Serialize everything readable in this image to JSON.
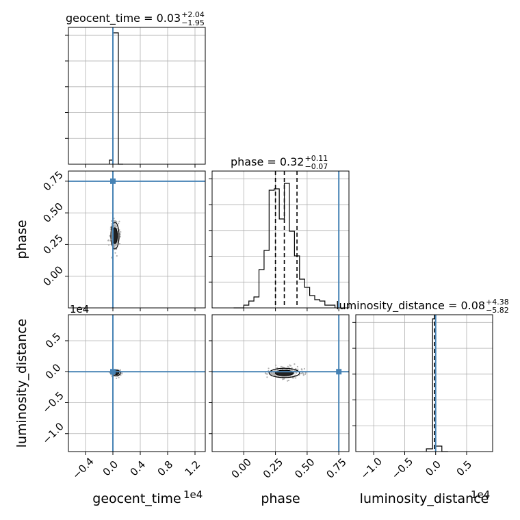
{
  "chart_data": {
    "type": "corner",
    "parameters": [
      "geocent_time",
      "phase",
      "luminosity_distance"
    ],
    "axis_labels": {
      "geocent_time": "geocent_time",
      "phase": "phase",
      "luminosity_distance": "luminosity_distance"
    },
    "titles": [
      {
        "param": "geocent_time",
        "text": "geocent_time = 0.03",
        "plus": "+2.04",
        "minus": "−1.95"
      },
      {
        "param": "phase",
        "text": "phase = 0.32",
        "plus": "+0.11",
        "minus": "−0.07"
      },
      {
        "param": "luminosity_distance",
        "text": "luminosity_distance = 0.08",
        "plus": "+4.38",
        "minus": "−5.82"
      }
    ],
    "offset_texts": {
      "geocent_time": "1e4",
      "luminosity_distance": "1e4"
    },
    "ranges": {
      "geocent_time": [
        -0.65,
        1.35
      ],
      "phase": [
        -0.25,
        0.83
      ],
      "luminosity_distance": [
        -1.29,
        0.92
      ]
    },
    "ticks": {
      "geocent_time": {
        "values": [
          -0.4,
          0.0,
          0.4,
          0.8,
          1.2
        ],
        "labels": [
          "−0.4",
          "0.0",
          "0.4",
          "0.8",
          "1.2"
        ]
      },
      "phase": {
        "values": [
          0.0,
          0.25,
          0.5,
          0.75
        ],
        "labels": [
          "0.00",
          "0.25",
          "0.50",
          "0.75"
        ]
      },
      "luminosity_distance": {
        "values": [
          -1.0,
          -0.5,
          0.0,
          0.5
        ],
        "labels": [
          "−1.0",
          "−0.5",
          "0.0",
          "0.5"
        ]
      }
    },
    "truths": {
      "geocent_time": 0.0,
      "phase": 0.75,
      "luminosity_distance": 0.0
    },
    "truth_color": "#4682b4",
    "hist_color": "#000000",
    "scatter_color": "#b0b0b0",
    "grid": true,
    "histograms": {
      "geocent_time": {
        "edges": [
          -0.05,
          0.0,
          0.08,
          0.15
        ],
        "heights": [
          0.03,
          0.96,
          0.0
        ],
        "quantile_lines": [
          0.0
        ]
      },
      "phase": {
        "edges": [
          -0.08,
          -0.04,
          0.0,
          0.04,
          0.08,
          0.12,
          0.16,
          0.2,
          0.24,
          0.28,
          0.32,
          0.36,
          0.4,
          0.44,
          0.48,
          0.52,
          0.56,
          0.6,
          0.64,
          0.68,
          0.72
        ],
        "heights": [
          0.0,
          0.0,
          0.02,
          0.05,
          0.08,
          0.28,
          0.42,
          0.86,
          0.87,
          0.65,
          0.91,
          0.56,
          0.38,
          0.21,
          0.15,
          0.09,
          0.06,
          0.05,
          0.02,
          0.02
        ],
        "quantile_lines": [
          0.25,
          0.32,
          0.42
        ]
      },
      "luminosity_distance": {
        "edges": [
          -0.15,
          -0.05,
          0.0,
          0.1,
          0.2
        ],
        "heights": [
          0.02,
          0.97,
          0.04,
          0.0
        ],
        "quantile_lines": [
          -0.02
        ]
      }
    },
    "contours_2d": [
      {
        "x": "geocent_time",
        "y": "phase",
        "center": [
          0.03,
          0.32
        ],
        "spread": [
          0.04,
          0.07
        ]
      },
      {
        "x": "geocent_time",
        "y": "luminosity_distance",
        "center": [
          0.05,
          -0.02
        ],
        "spread": [
          0.04,
          0.03
        ]
      },
      {
        "x": "phase",
        "y": "luminosity_distance",
        "center": [
          0.32,
          -0.02
        ],
        "spread": [
          0.08,
          0.05
        ]
      }
    ]
  }
}
